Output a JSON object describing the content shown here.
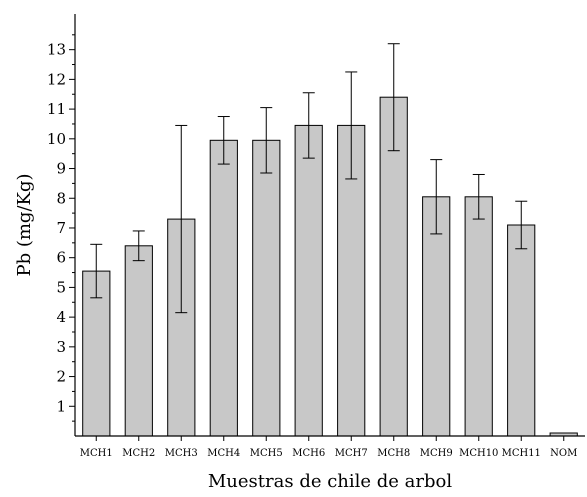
{
  "chart_data": {
    "type": "bar",
    "title": "",
    "xlabel": "Muestras de chile de arbol",
    "ylabel": "Pb (mg/Kg)",
    "ylim": [
      0,
      14.2
    ],
    "yticks": [
      1,
      2,
      3,
      4,
      5,
      6,
      7,
      8,
      9,
      10,
      11,
      12,
      13
    ],
    "ytick_labels": [
      "1",
      "2",
      "3",
      "4",
      "5",
      "6",
      "7",
      "8",
      "9",
      "10",
      "11",
      "12",
      "13"
    ],
    "categories": [
      "MCH1",
      "MCH2",
      "MCH3",
      "MCH4",
      "MCH5",
      "MCH6",
      "MCH7",
      "MCH8",
      "MCH9",
      "MCH10",
      "MCH11",
      "NOM"
    ],
    "values": [
      5.55,
      6.4,
      7.3,
      9.95,
      9.95,
      10.45,
      10.45,
      11.4,
      8.05,
      8.05,
      7.1,
      0.1
    ],
    "errors": [
      0.9,
      0.5,
      3.15,
      0.8,
      1.1,
      1.1,
      1.8,
      1.8,
      1.25,
      0.75,
      0.8,
      0
    ],
    "grid": false,
    "legend": "none",
    "colors": {
      "bar_fill": "#c8c8c8",
      "stroke": "#000000"
    }
  }
}
